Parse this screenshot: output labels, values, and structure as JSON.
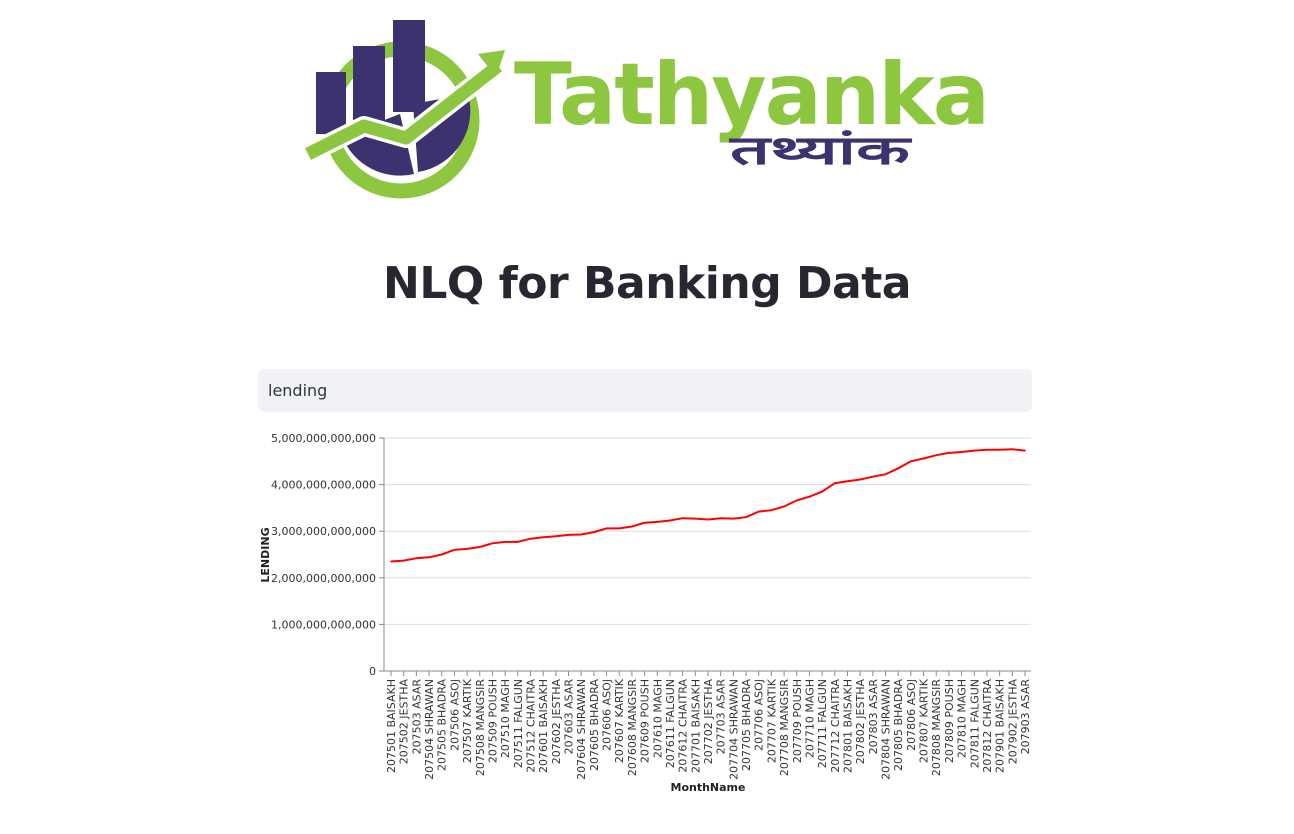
{
  "brand": {
    "name": "Tathyanka",
    "name_devanagari": "तथ्यांक",
    "colors": {
      "purple": "#3d3270",
      "green": "#8dc63f"
    }
  },
  "page": {
    "title": "NLQ for Banking Data"
  },
  "query": {
    "value": "lending"
  },
  "chart_data": {
    "type": "line",
    "xlabel": "MonthName",
    "ylabel": "LENDING",
    "ylim": [
      0,
      5000000000000
    ],
    "yticks": [
      0,
      1000000000000,
      2000000000000,
      3000000000000,
      4000000000000,
      5000000000000
    ],
    "ytick_labels": [
      "0",
      "1,000,000,000,000",
      "2,000,000,000,000",
      "3,000,000,000,000",
      "4,000,000,000,000",
      "5,000,000,000,000"
    ],
    "grid": true,
    "line_color": "#ff0000",
    "categories": [
      "207501 BAISAKH",
      "207502 JESTHA",
      "207503 ASAR",
      "207504 SHRAWAN",
      "207505 BHADRA",
      "207506 ASOJ",
      "207507 KARTIK",
      "207508 MANGSIR",
      "207509 POUSH",
      "207510 MAGH",
      "207511 FALGUN",
      "207512 CHAITRA",
      "207601 BAISAKH",
      "207602 JESTHA",
      "207603 ASAR",
      "207604 SHRAWAN",
      "207605 BHADRA",
      "207606 ASOJ",
      "207607 KARTIK",
      "207608 MANGSIR",
      "207609 POUSH",
      "207610 MAGH",
      "207611 FALGUN",
      "207612 CHAITRA",
      "207701 BAISAKH",
      "207702 JESTHA",
      "207703 ASAR",
      "207704 SHRAWAN",
      "207705 BHADRA",
      "207706 ASOJ",
      "207707 KARTIK",
      "207708 MANGSIR",
      "207709 POUSH",
      "207710 MAGH",
      "207711 FALGUN",
      "207712 CHAITRA",
      "207801 BAISAKH",
      "207802 JESTHA",
      "207803 ASAR",
      "207804 SHRAWAN",
      "207805 BHADRA",
      "207806 ASOJ",
      "207807 KARTIK",
      "207808 MANGSIR",
      "207809 POUSH",
      "207810 MAGH",
      "207811 FALGUN",
      "207812 CHAITRA",
      "207901 BAISAKH",
      "207902 JESTHA",
      "207903 ASAR"
    ],
    "values": [
      2350000000000,
      2370000000000,
      2420000000000,
      2440000000000,
      2500000000000,
      2600000000000,
      2620000000000,
      2660000000000,
      2740000000000,
      2770000000000,
      2770000000000,
      2840000000000,
      2870000000000,
      2890000000000,
      2920000000000,
      2930000000000,
      2980000000000,
      3060000000000,
      3060000000000,
      3100000000000,
      3180000000000,
      3200000000000,
      3230000000000,
      3280000000000,
      3270000000000,
      3250000000000,
      3280000000000,
      3270000000000,
      3300000000000,
      3420000000000,
      3450000000000,
      3530000000000,
      3660000000000,
      3740000000000,
      3850000000000,
      4030000000000,
      4070000000000,
      4110000000000,
      4170000000000,
      4220000000000,
      4350000000000,
      4500000000000,
      4560000000000,
      4630000000000,
      4680000000000,
      4700000000000,
      4730000000000,
      4750000000000,
      4750000000000,
      4760000000000,
      4730000000000
    ]
  }
}
